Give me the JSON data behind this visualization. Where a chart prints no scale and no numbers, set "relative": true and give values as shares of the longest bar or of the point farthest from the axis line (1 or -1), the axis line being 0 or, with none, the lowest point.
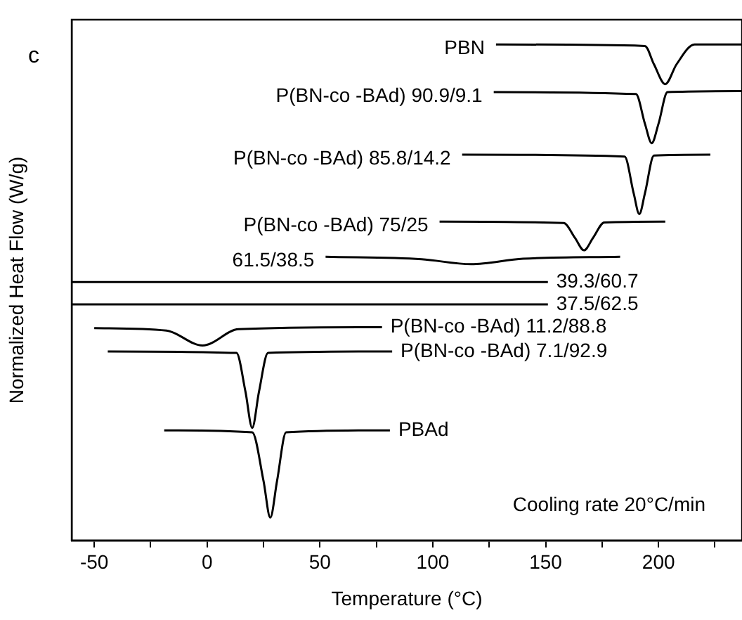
{
  "chart_data": {
    "type": "line",
    "title": "c",
    "xlabel": "Temperature (°C)",
    "ylabel": "Normalized Heat Flow (W/g)",
    "relative": true,
    "legend": false,
    "grid": false,
    "marker": "none",
    "line_style": "solid",
    "xlim": [
      -60,
      237
    ],
    "xticks": [
      -50,
      {
        "value": -25,
        "label": null
      },
      0,
      {
        "value": 25,
        "label": null
      },
      50,
      {
        "value": 75,
        "label": null
      },
      100,
      {
        "value": 125,
        "label": null
      },
      150,
      {
        "value": 175,
        "label": null
      },
      200,
      {
        "value": 225,
        "label": null
      }
    ],
    "annotations": [
      "Cooling rate 20°C/min"
    ],
    "series": [
      {
        "name": "PBN",
        "color": "#000000",
        "x": [
          128,
          194,
          198,
          203,
          208,
          216,
          237
        ],
        "values": [
          1.0,
          0.997,
          0.96,
          0.92,
          0.96,
          1.0,
          1.0
        ]
      },
      {
        "name": "P(BN-co -BAd) 90.9/9.1",
        "color": "#000000",
        "x": [
          127,
          190,
          194,
          197,
          200,
          204,
          237
        ],
        "values": [
          0.904,
          0.9,
          0.84,
          0.801,
          0.84,
          0.904,
          0.906
        ]
      },
      {
        "name": "P(BN-co -BAd) 85.8/14.2",
        "color": "#000000",
        "x": [
          113,
          185,
          189,
          191.5,
          194,
          198,
          223
        ],
        "values": [
          0.778,
          0.774,
          0.7,
          0.658,
          0.7,
          0.776,
          0.778
        ]
      },
      {
        "name": "P(BN-co -BAd) 75/25",
        "color": "#000000",
        "x": [
          103,
          158,
          163,
          167,
          171,
          176,
          203
        ],
        "values": [
          0.643,
          0.64,
          0.61,
          0.585,
          0.61,
          0.641,
          0.643
        ]
      },
      {
        "name": "61.5/38.5",
        "color": "#000000",
        "x": [
          52.5,
          95,
          117,
          140,
          183
        ],
        "values": [
          0.572,
          0.567,
          0.557,
          0.568,
          0.572
        ]
      },
      {
        "name": "39.3/60.7",
        "color": "#000000",
        "x": [
          -60,
          151
        ],
        "values": [
          0.521,
          0.521
        ]
      },
      {
        "name": "37.5/62.5",
        "color": "#000000",
        "x": [
          -60,
          151
        ],
        "values": [
          0.476,
          0.476
        ]
      },
      {
        "name": "P(BN-co -BAd) 11.2/88.8",
        "color": "#000000",
        "x": [
          -50,
          -18,
          -2,
          14,
          77.5
        ],
        "values": [
          0.428,
          0.423,
          0.393,
          0.426,
          0.43
        ]
      },
      {
        "name": "P(BN-co -BAd) 7.1/92.9",
        "color": "#000000",
        "x": [
          -44,
          13,
          17,
          20,
          23,
          27,
          82
        ],
        "values": [
          0.381,
          0.378,
          0.3,
          0.227,
          0.3,
          0.378,
          0.381
        ]
      },
      {
        "name": "PBAd",
        "color": "#000000",
        "x": [
          -19,
          20,
          25,
          28,
          31,
          35,
          81
        ],
        "values": [
          0.222,
          0.218,
          0.12,
          0.046,
          0.12,
          0.218,
          0.222
        ]
      }
    ]
  }
}
